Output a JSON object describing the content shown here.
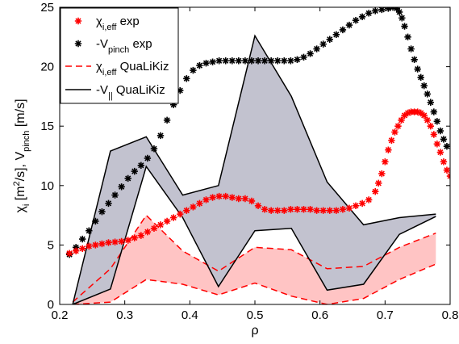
{
  "chart_data": {
    "type": "line",
    "xlabel": "ρ",
    "ylabel": {
      "parts": [
        "χ",
        "i",
        " [m",
        "2",
        "/s], V",
        "pinch",
        " [m/s]"
      ]
    },
    "xlim": [
      0.2,
      0.8
    ],
    "ylim": [
      0,
      25
    ],
    "xticks": [
      "0.2",
      "0.3",
      "0.4",
      "0.5",
      "0.6",
      "0.7",
      "0.8"
    ],
    "yticks": [
      "0",
      "5",
      "10",
      "15",
      "20",
      "25"
    ],
    "grid": false,
    "legend_position": "top-left",
    "legend": [
      {
        "key": "chi_exp",
        "main": "χ",
        "sub": "i,eff",
        "suffix": " exp",
        "style": "red-star"
      },
      {
        "key": "v_exp",
        "main": "-V",
        "sub": "pinch",
        "suffix": " exp",
        "style": "black-star"
      },
      {
        "key": "chi_qlk",
        "main": "χ",
        "sub": "i,eff",
        "suffix": " QuaLiKiz",
        "style": "red-dashed"
      },
      {
        "key": "v_qlk",
        "main": "-V",
        "sub": "||",
        "suffix": " QuaLiKiz",
        "style": "black-solid"
      }
    ],
    "colors": {
      "chi": "#ff0000",
      "v": "#000000",
      "chi_band": "#ffc4c4",
      "v_band": "#c2c2cf"
    },
    "series": [
      {
        "key": "chi_exp",
        "kind": "markers",
        "x": [
          0.215,
          0.225,
          0.235,
          0.245,
          0.255,
          0.265,
          0.275,
          0.285,
          0.295,
          0.305,
          0.315,
          0.325,
          0.335,
          0.345,
          0.355,
          0.365,
          0.375,
          0.385,
          0.395,
          0.405,
          0.415,
          0.425,
          0.435,
          0.445,
          0.455,
          0.465,
          0.475,
          0.485,
          0.495,
          0.505,
          0.515,
          0.525,
          0.535,
          0.545,
          0.555,
          0.565,
          0.575,
          0.585,
          0.595,
          0.605,
          0.615,
          0.625,
          0.635,
          0.645,
          0.655,
          0.665,
          0.675,
          0.685,
          0.69,
          0.695,
          0.7,
          0.705,
          0.71,
          0.715,
          0.72,
          0.725,
          0.73,
          0.735,
          0.74,
          0.745,
          0.75,
          0.755,
          0.76,
          0.765,
          0.77,
          0.775,
          0.78,
          0.785,
          0.79,
          0.795,
          0.8
        ],
        "y": [
          4.3,
          4.5,
          4.7,
          4.9,
          5.0,
          5.1,
          5.2,
          5.25,
          5.3,
          5.4,
          5.6,
          5.8,
          6.1,
          6.4,
          6.7,
          7.0,
          7.3,
          7.6,
          7.9,
          8.2,
          8.5,
          8.8,
          9.0,
          9.1,
          9.1,
          9.0,
          8.9,
          8.9,
          8.7,
          8.3,
          8.0,
          7.9,
          7.9,
          7.9,
          8.0,
          8.0,
          8.0,
          8.0,
          7.9,
          7.9,
          7.9,
          7.9,
          8.0,
          8.1,
          8.3,
          8.5,
          8.8,
          9.5,
          10.2,
          11.0,
          12.0,
          13.0,
          13.8,
          14.5,
          15.0,
          15.5,
          15.9,
          16.1,
          16.2,
          16.2,
          16.2,
          16.1,
          15.9,
          15.5,
          15.0,
          14.3,
          13.5,
          12.8,
          12.0,
          11.3,
          10.8
        ]
      },
      {
        "key": "v_exp",
        "kind": "markers",
        "x": [
          0.215,
          0.225,
          0.235,
          0.245,
          0.255,
          0.265,
          0.275,
          0.285,
          0.295,
          0.305,
          0.315,
          0.325,
          0.335,
          0.345,
          0.355,
          0.365,
          0.375,
          0.385,
          0.395,
          0.405,
          0.415,
          0.425,
          0.435,
          0.445,
          0.455,
          0.465,
          0.475,
          0.485,
          0.495,
          0.505,
          0.515,
          0.525,
          0.535,
          0.545,
          0.555,
          0.565,
          0.575,
          0.585,
          0.595,
          0.605,
          0.615,
          0.625,
          0.635,
          0.645,
          0.655,
          0.665,
          0.675,
          0.685,
          0.695,
          0.705,
          0.712,
          0.718,
          0.722,
          0.726,
          0.73,
          0.735,
          0.74,
          0.745,
          0.75,
          0.755,
          0.76,
          0.765,
          0.77,
          0.775,
          0.78,
          0.785,
          0.79,
          0.795
        ],
        "y": [
          4.2,
          4.8,
          5.5,
          6.2,
          7.0,
          7.8,
          8.5,
          9.2,
          9.9,
          10.6,
          11.2,
          11.7,
          12.3,
          13.1,
          14.2,
          15.5,
          16.8,
          18.0,
          19.0,
          19.7,
          20.1,
          20.3,
          20.4,
          20.5,
          20.5,
          20.5,
          20.5,
          20.5,
          20.5,
          20.5,
          20.5,
          20.5,
          20.5,
          20.5,
          20.5,
          20.6,
          20.8,
          21.1,
          21.5,
          21.9,
          22.3,
          22.7,
          23.1,
          23.5,
          23.9,
          24.2,
          24.5,
          24.7,
          24.8,
          24.9,
          25.0,
          24.9,
          24.6,
          24.1,
          23.4,
          22.5,
          21.5,
          20.6,
          19.8,
          19.1,
          18.4,
          17.7,
          17.0,
          16.2,
          15.4,
          14.6,
          13.9,
          13.3
        ]
      },
      {
        "key": "chi_qlk",
        "kind": "band",
        "x": [
          0.22,
          0.278,
          0.333,
          0.389,
          0.444,
          0.5,
          0.556,
          0.611,
          0.667,
          0.722,
          0.778
        ],
        "upper": [
          0.2,
          3.0,
          7.5,
          4.5,
          2.8,
          4.8,
          4.6,
          3.0,
          3.2,
          4.8,
          6.0
        ],
        "lower": [
          0.0,
          0.2,
          2.1,
          1.7,
          0.8,
          1.8,
          0.7,
          0.0,
          0.5,
          2.1,
          3.4
        ]
      },
      {
        "key": "v_qlk",
        "kind": "band",
        "x": [
          0.22,
          0.278,
          0.333,
          0.389,
          0.444,
          0.5,
          0.556,
          0.611,
          0.667,
          0.722,
          0.778
        ],
        "upper": [
          0.0,
          12.9,
          14.1,
          9.2,
          10.0,
          22.6,
          17.5,
          10.3,
          6.7,
          7.3,
          7.6
        ],
        "lower": [
          0.0,
          1.3,
          11.6,
          7.3,
          1.5,
          6.2,
          6.4,
          1.2,
          1.7,
          5.9,
          7.4
        ]
      }
    ]
  }
}
